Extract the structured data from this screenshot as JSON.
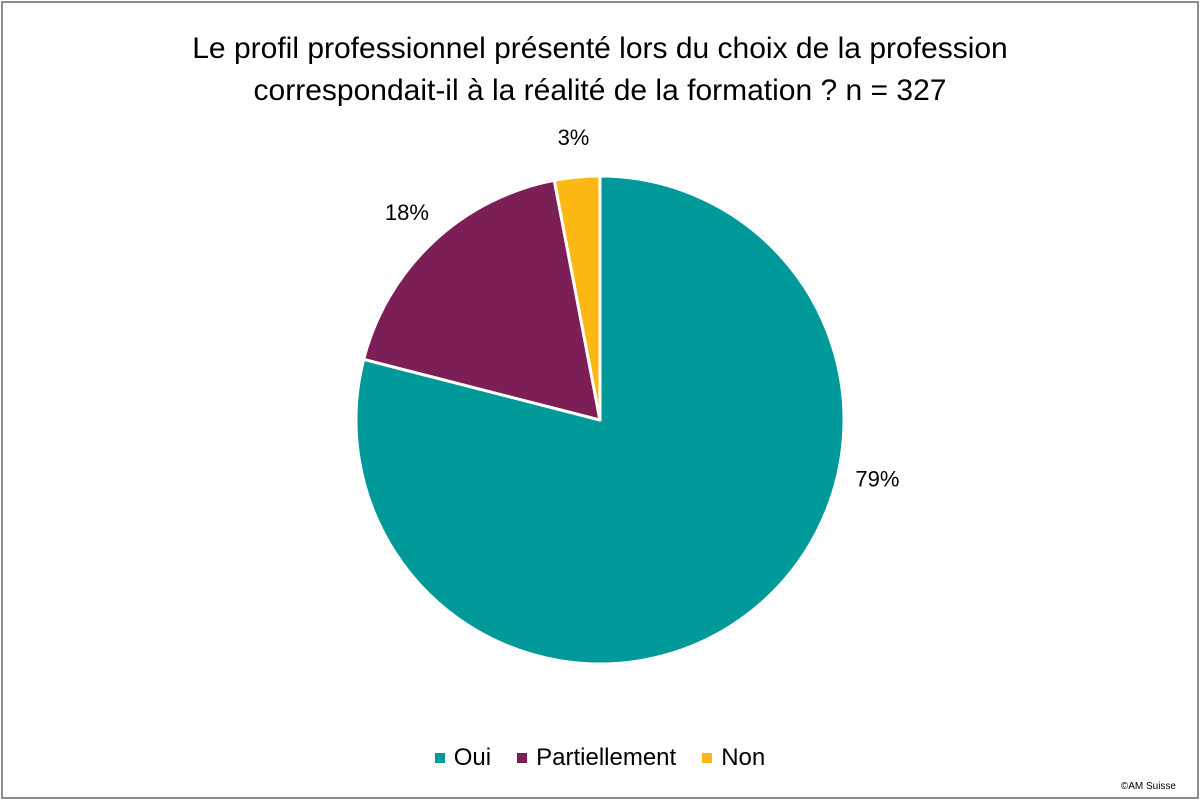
{
  "chart_data": {
    "type": "pie",
    "title_lines": [
      "Le profil professionnel présenté lors du choix de la profession",
      "correspondait-il à la réalité de la formation ? n = 327"
    ],
    "slices": [
      {
        "name": "Oui",
        "value": 79,
        "label": "79%",
        "color": "#00999A"
      },
      {
        "name": "Partiellement",
        "value": 18,
        "label": "18%",
        "color": "#7B1F56"
      },
      {
        "name": "Non",
        "value": 3,
        "label": "3%",
        "color": "#FDB813"
      }
    ],
    "start": "12 o'clock",
    "direction": "clockwise",
    "legend_position": "bottom"
  },
  "copyright": "©AM Suisse"
}
